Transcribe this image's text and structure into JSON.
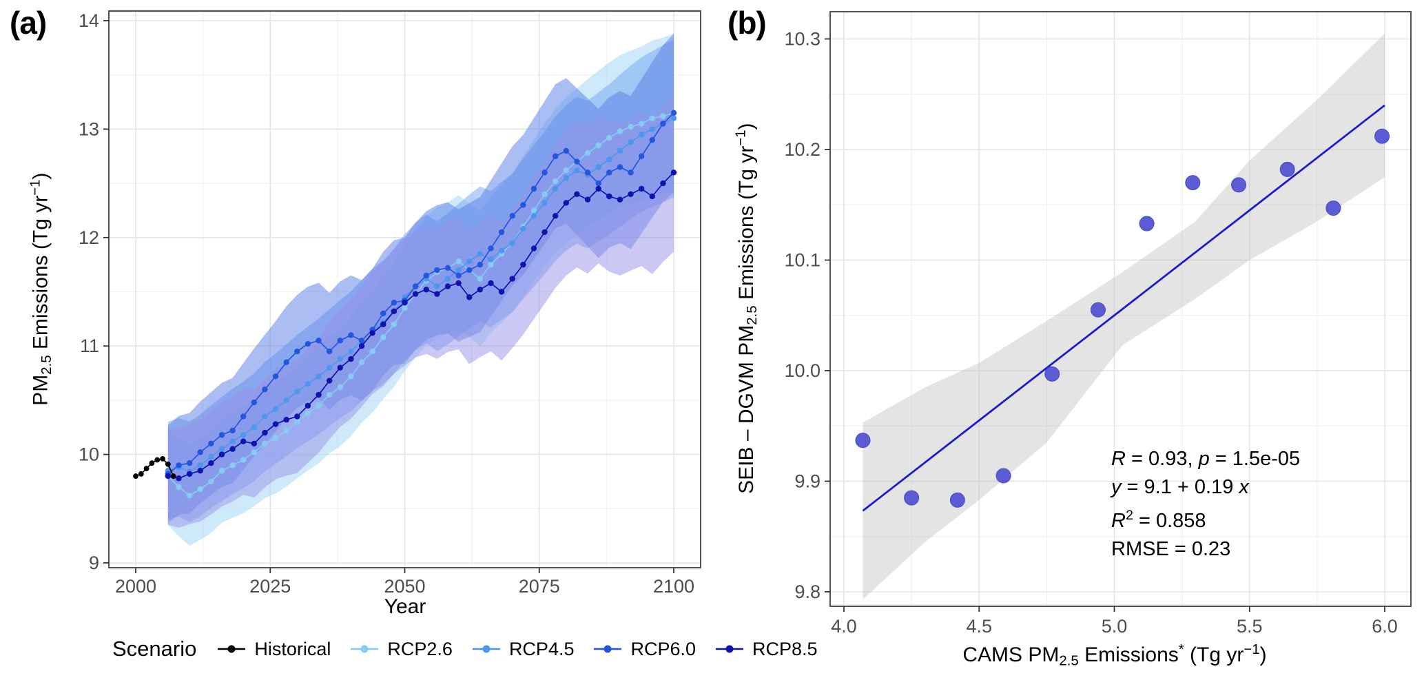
{
  "figure": {
    "panel_a_label": "(a)",
    "panel_b_label": "(b)"
  },
  "panel_a": {
    "x_title": "Year",
    "y_title": {
      "t1": "PM",
      "sub": "2.5",
      "t2": " Emissions (Tg yr",
      "sup": "−1",
      "t3": ")"
    },
    "x_ticks": [
      2000,
      2025,
      2050,
      2075,
      2100
    ],
    "x_tick_labels": [
      "2000",
      "2025",
      "2050",
      "2075",
      "2100"
    ],
    "y_ticks": [
      9,
      10,
      11,
      12,
      13,
      14
    ],
    "y_tick_labels": [
      "9",
      "10",
      "11",
      "12",
      "13",
      "14"
    ],
    "legend": {
      "title": "Scenario",
      "items": [
        {
          "label": "Historical",
          "color": "#000000"
        },
        {
          "label": "RCP2.6",
          "color": "#85CBF2"
        },
        {
          "label": "RCP4.5",
          "color": "#4D97EC"
        },
        {
          "label": "RCP6.0",
          "color": "#2355DE"
        },
        {
          "label": "RCP8.5",
          "color": "#1013AE"
        }
      ]
    }
  },
  "panel_b": {
    "x_title": {
      "t1": "CAMS PM",
      "sub": "2.5",
      "t2": " Emissions",
      "sup1": "*",
      "t3": " (Tg yr",
      "sup2": "−1",
      "t4": ")"
    },
    "y_title": {
      "t1": "SEIB – DGVM PM",
      "sub": "2.5",
      "t2": " Emissions (Tg yr",
      "sup": "−1",
      "t3": ")"
    },
    "x_ticks": [
      4.0,
      4.5,
      5.0,
      5.5,
      6.0
    ],
    "x_tick_labels": [
      "4.0",
      "4.5",
      "5.0",
      "5.5",
      "6.0"
    ],
    "y_ticks": [
      9.8,
      9.9,
      10.0,
      10.1,
      10.2,
      10.3
    ],
    "y_tick_labels": [
      "9.8",
      "9.9",
      "10.0",
      "10.1",
      "10.2",
      "10.3"
    ],
    "stats": {
      "l1_r": "R",
      "l1_mid": " = 0.93, ",
      "l1_p": "p",
      "l1_end": " = 1.5e-05",
      "l2_y": "y",
      "l2_mid": " = 9.1 + 0.19 ",
      "l2_x": "x",
      "l3_r": "R",
      "l3_sup": "2",
      "l3_end": " = 0.858",
      "l4": "RMSE = 0.23"
    }
  },
  "chart_data": [
    {
      "type": "line",
      "title": "PM2.5 emissions time series by scenario with uncertainty ribbons",
      "xlabel": "Year",
      "ylabel": "PM2.5 Emissions (Tg yr−1)",
      "xlim": [
        1995,
        2105
      ],
      "ylim": [
        8.95,
        14.1
      ],
      "grid": true,
      "legend_position": "bottom",
      "historical": {
        "name": "Historical",
        "color": "#000000",
        "x": [
          2000,
          2001,
          2002,
          2003,
          2004,
          2005,
          2006,
          2007
        ],
        "y": [
          9.8,
          9.82,
          9.87,
          9.92,
          9.95,
          9.96,
          9.91,
          9.8
        ]
      },
      "years": [
        2006,
        2008,
        2010,
        2012,
        2014,
        2016,
        2018,
        2020,
        2022,
        2024,
        2026,
        2028,
        2030,
        2032,
        2034,
        2036,
        2038,
        2040,
        2042,
        2044,
        2046,
        2048,
        2050,
        2052,
        2054,
        2056,
        2058,
        2060,
        2062,
        2064,
        2066,
        2068,
        2070,
        2072,
        2074,
        2076,
        2078,
        2080,
        2082,
        2084,
        2086,
        2088,
        2090,
        2092,
        2094,
        2096,
        2098,
        2100
      ],
      "series": [
        {
          "name": "RCP2.6",
          "color": "#85CBF2",
          "ribbon": "rgba(158,213,246,0.50)",
          "values": [
            9.8,
            9.7,
            9.62,
            9.68,
            9.75,
            9.85,
            9.9,
            9.95,
            10.02,
            10.1,
            10.15,
            10.22,
            10.3,
            10.38,
            10.45,
            10.55,
            10.62,
            10.72,
            10.85,
            10.95,
            11.08,
            11.2,
            11.35,
            11.48,
            11.6,
            11.68,
            11.72,
            11.78,
            11.7,
            11.62,
            11.75,
            11.85,
            11.95,
            12.1,
            12.25,
            12.4,
            12.52,
            12.62,
            12.7,
            12.78,
            12.85,
            12.92,
            12.98,
            13.02,
            13.05,
            13.1,
            13.12,
            13.15
          ]
        },
        {
          "name": "RCP4.5",
          "color": "#4D97EC",
          "ribbon": "rgba(116,163,238,0.50)",
          "values": [
            9.85,
            9.88,
            9.84,
            9.9,
            9.98,
            10.05,
            10.12,
            10.18,
            10.25,
            10.35,
            10.42,
            10.5,
            10.58,
            10.65,
            10.72,
            10.8,
            10.88,
            10.95,
            11.05,
            11.15,
            11.22,
            11.32,
            11.45,
            11.55,
            11.62,
            11.55,
            11.62,
            11.7,
            11.78,
            11.85,
            11.8,
            11.88,
            11.95,
            12.08,
            12.2,
            12.32,
            12.45,
            12.55,
            12.62,
            12.58,
            12.65,
            12.72,
            12.8,
            12.88,
            12.95,
            13.0,
            13.05,
            13.1
          ]
        },
        {
          "name": "RCP6.0",
          "color": "#2355DE",
          "ribbon": "rgba(88,126,232,0.50)",
          "values": [
            9.82,
            9.9,
            9.92,
            10.02,
            10.1,
            10.18,
            10.22,
            10.35,
            10.48,
            10.6,
            10.72,
            10.85,
            10.95,
            11.02,
            11.05,
            10.95,
            11.05,
            11.1,
            11.05,
            11.15,
            11.3,
            11.4,
            11.42,
            11.55,
            11.65,
            11.7,
            11.72,
            11.65,
            11.7,
            11.75,
            11.9,
            12.05,
            12.2,
            12.3,
            12.45,
            12.6,
            12.75,
            12.8,
            12.7,
            12.6,
            12.5,
            12.6,
            12.65,
            12.6,
            12.75,
            12.9,
            13.05,
            13.15
          ]
        },
        {
          "name": "RCP8.5",
          "color": "#1013AE",
          "ribbon": "rgba(152,146,232,0.50)",
          "values": [
            9.8,
            9.78,
            9.82,
            9.85,
            9.92,
            10.0,
            10.05,
            10.12,
            10.1,
            10.2,
            10.28,
            10.32,
            10.35,
            10.45,
            10.55,
            10.68,
            10.8,
            10.88,
            11.0,
            11.12,
            11.2,
            11.32,
            11.4,
            11.48,
            11.52,
            11.48,
            11.55,
            11.58,
            11.45,
            11.52,
            11.58,
            11.5,
            11.62,
            11.75,
            11.9,
            12.05,
            12.2,
            12.32,
            12.4,
            12.35,
            12.45,
            12.38,
            12.35,
            12.4,
            12.45,
            12.38,
            12.5,
            12.6
          ]
        }
      ],
      "ribbon_halfwidth": {
        "start": 0.45,
        "end": 0.73
      }
    },
    {
      "type": "scatter",
      "title": "SEIB-DGVM vs CAMS PM2.5 emissions with linear fit",
      "xlabel": "CAMS PM2.5 Emissions* (Tg yr−1)",
      "ylabel": "SEIB – DGVM PM2.5 Emissions (Tg yr−1)",
      "xlim": [
        3.92,
        6.07
      ],
      "ylim": [
        9.787,
        10.325
      ],
      "grid": true,
      "point_color": "#5B5BD4",
      "line_color": "#1A1AD0",
      "band_color": "rgba(184,184,184,0.38)",
      "x": [
        4.07,
        4.25,
        4.42,
        4.59,
        4.77,
        4.94,
        5.12,
        5.29,
        5.46,
        5.64,
        5.81,
        5.99
      ],
      "y": [
        9.937,
        9.885,
        9.883,
        9.905,
        9.997,
        10.055,
        10.133,
        10.17,
        10.168,
        10.182,
        10.147,
        10.212
      ],
      "regression": {
        "intercept": 9.1,
        "slope": 0.19,
        "x_start": 4.07,
        "x_end": 6.0
      },
      "confidence_band": {
        "x": [
          4.07,
          4.3,
          4.5,
          4.75,
          5.03,
          5.3,
          5.5,
          5.75,
          6.0
        ],
        "low": [
          9.793,
          9.845,
          9.883,
          9.935,
          10.023,
          10.065,
          10.1,
          10.135,
          10.175
        ],
        "high": [
          9.953,
          9.985,
          10.007,
          10.045,
          10.089,
          10.135,
          10.19,
          10.245,
          10.305
        ]
      },
      "stats_text": [
        "R = 0.93, p = 1.5e-05",
        "y = 9.1 + 0.19 x",
        "R2 = 0.858",
        "RMSE = 0.23"
      ]
    }
  ]
}
